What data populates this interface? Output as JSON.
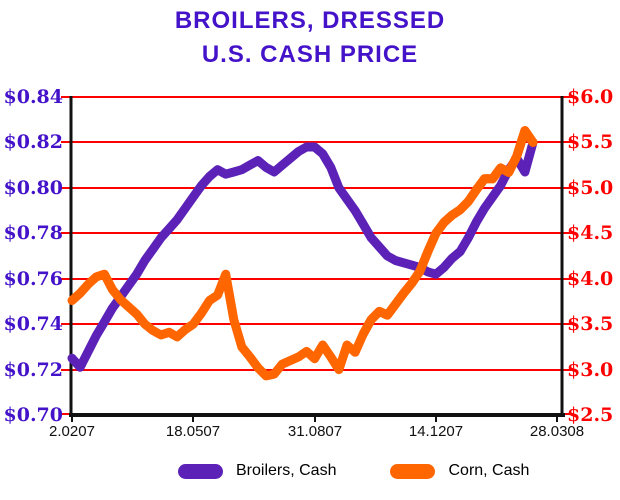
{
  "title": {
    "line1": "BROILERS, DRESSED",
    "line2": "U.S. CASH PRICE"
  },
  "colors": {
    "title": "#4413c9",
    "left_axis_labels": "#4413c9",
    "right_axis_labels": "#ff0000",
    "gridlines": "#ff0000",
    "frame": "#111111",
    "broilers_line": "#5c22b8",
    "corn_line": "#ff6600"
  },
  "chart_data": {
    "type": "line",
    "title": "BROILERS, DRESSED U.S. CASH PRICE",
    "grid": "horizontal red gridlines on",
    "legend_position": "bottom center",
    "x_axis": {
      "tick_labels": [
        "2.0207",
        "18.0507",
        "31.0807",
        "14.1207",
        "28.0308"
      ],
      "note_units": "weekly dates d.mmyy"
    },
    "left_axis": {
      "tick_labels": [
        "$0.84",
        "$0.82",
        "$0.80",
        "$0.78",
        "$0.76",
        "$0.74",
        "$0.72",
        "$0.70"
      ],
      "min": 0.7,
      "max": 0.84
    },
    "right_axis": {
      "tick_labels": [
        "$6.0",
        "$5.5",
        "$5.0",
        "$4.5",
        "$4.0",
        "$3.5",
        "$3.0",
        "$2.5"
      ],
      "min": 2.5,
      "max": 6.0
    },
    "series": [
      {
        "name": "Broilers, Cash",
        "axis": "left",
        "color": "#5c22b8",
        "values": [
          0.725,
          0.721,
          0.728,
          0.735,
          0.741,
          0.747,
          0.752,
          0.757,
          0.762,
          0.768,
          0.773,
          0.778,
          0.782,
          0.786,
          0.791,
          0.796,
          0.801,
          0.805,
          0.808,
          0.806,
          0.807,
          0.808,
          0.81,
          0.812,
          0.809,
          0.807,
          0.81,
          0.813,
          0.816,
          0.818,
          0.818,
          0.815,
          0.809,
          0.8,
          0.795,
          0.79,
          0.784,
          0.778,
          0.774,
          0.77,
          0.768,
          0.767,
          0.766,
          0.765,
          0.763,
          0.762,
          0.765,
          0.769,
          0.772,
          0.778,
          0.785,
          0.791,
          0.796,
          0.801,
          0.808,
          0.813,
          0.807,
          0.82
        ]
      },
      {
        "name": "Corn, Cash",
        "axis": "right",
        "color": "#ff6600",
        "values": [
          3.76,
          3.84,
          3.94,
          4.02,
          4.05,
          3.88,
          3.77,
          3.69,
          3.61,
          3.5,
          3.43,
          3.38,
          3.41,
          3.36,
          3.44,
          3.5,
          3.62,
          3.76,
          3.82,
          4.05,
          3.55,
          3.25,
          3.14,
          3.02,
          2.93,
          2.95,
          3.06,
          3.1,
          3.14,
          3.2,
          3.12,
          3.27,
          3.14,
          3.0,
          3.27,
          3.19,
          3.39,
          3.55,
          3.64,
          3.6,
          3.72,
          3.84,
          3.95,
          4.08,
          4.3,
          4.5,
          4.62,
          4.7,
          4.76,
          4.85,
          4.98,
          5.1,
          5.1,
          5.22,
          5.17,
          5.35,
          5.63,
          5.5
        ]
      }
    ]
  }
}
